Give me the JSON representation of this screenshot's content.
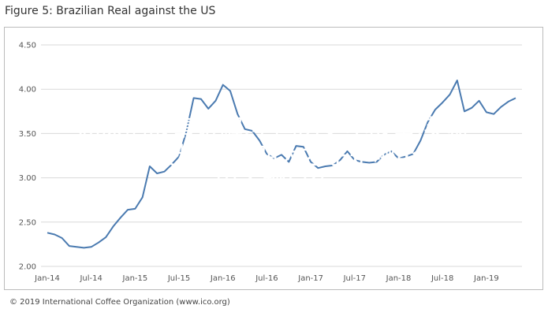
{
  "chart_data": {
    "type": "line",
    "title": "Figure 5: Brazilian Real against the US",
    "xlabel": "",
    "ylabel": "",
    "x": [
      "Jan-14",
      "Feb-14",
      "Mar-14",
      "Apr-14",
      "May-14",
      "Jun-14",
      "Jul-14",
      "Aug-14",
      "Sep-14",
      "Oct-14",
      "Nov-14",
      "Dec-14",
      "Jan-15",
      "Feb-15",
      "Mar-15",
      "Apr-15",
      "May-15",
      "Jun-15",
      "Jul-15",
      "Aug-15",
      "Sep-15",
      "Oct-15",
      "Nov-15",
      "Dec-15",
      "Jan-16",
      "Feb-16",
      "Mar-16",
      "Apr-16",
      "May-16",
      "Jun-16",
      "Jul-16",
      "Aug-16",
      "Sep-16",
      "Oct-16",
      "Nov-16",
      "Dec-16",
      "Jan-17",
      "Feb-17",
      "Mar-17",
      "Apr-17",
      "May-17",
      "Jun-17",
      "Jul-17",
      "Aug-17",
      "Sep-17",
      "Oct-17",
      "Nov-17",
      "Dec-17",
      "Jan-18",
      "Feb-18",
      "Mar-18",
      "Apr-18",
      "May-18",
      "Jun-18",
      "Jul-18",
      "Aug-18",
      "Sep-18",
      "Oct-18",
      "Nov-18",
      "Dec-18",
      "Jan-19",
      "Feb-19",
      "Mar-19",
      "Apr-19",
      "May-19"
    ],
    "series": [
      {
        "color": "#4a7ab0",
        "values": [
          2.38,
          2.36,
          2.32,
          2.23,
          2.22,
          2.21,
          2.22,
          2.27,
          2.33,
          2.45,
          2.55,
          2.64,
          2.65,
          2.78,
          3.13,
          3.05,
          3.07,
          3.15,
          3.24,
          3.52,
          3.9,
          3.89,
          3.78,
          3.87,
          4.05,
          3.98,
          3.72,
          3.55,
          3.53,
          3.42,
          3.27,
          3.22,
          3.26,
          3.18,
          3.36,
          3.35,
          3.18,
          3.11,
          3.13,
          3.14,
          3.2,
          3.3,
          3.2,
          3.18,
          3.17,
          3.18,
          3.26,
          3.3,
          3.22,
          3.24,
          3.27,
          3.42,
          3.63,
          3.77,
          3.85,
          3.94,
          4.1,
          3.75,
          3.79,
          3.87,
          3.74,
          3.72,
          3.8,
          3.86,
          3.9
        ]
      }
    ],
    "ylim": [
      2.0,
      4.5
    ],
    "yticks": [
      "4.50",
      "4.00",
      "3.50",
      "3.00",
      "2.50",
      "2.00"
    ],
    "xticks": [
      "Jan-14",
      "Jul-14",
      "Jan-15",
      "Jul-15",
      "Jan-16",
      "Jul-16",
      "Jan-17",
      "Jul-17",
      "Jan-18",
      "Jul-18",
      "Jan-19"
    ],
    "grid": true,
    "legend": "none"
  },
  "overlay_text": [
    "屈原的故事讲解,中国历史小故事,英雄",
    "事迹与资料,江南四大才子是哪4个,历",
    "史人物自传"
  ],
  "footer": "© 2019 International Coffee Organization (www.ico.org)",
  "colors": {
    "line": "#4a7ab0",
    "grid": "#d9d9d9",
    "overlay_text": "#ffffff"
  }
}
